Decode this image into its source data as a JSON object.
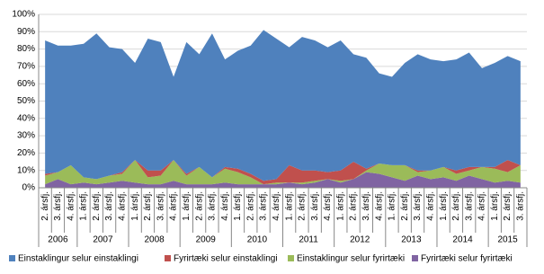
{
  "chart_data": {
    "type": "stacked-area",
    "categories": [
      {
        "year": "2006",
        "quarter": "2. ársfj."
      },
      {
        "year": "2006",
        "quarter": "3. ársfj."
      },
      {
        "year": "2006",
        "quarter": "4. ársfj."
      },
      {
        "year": "2007",
        "quarter": "1. ársfj."
      },
      {
        "year": "2007",
        "quarter": "2. ársfj."
      },
      {
        "year": "2007",
        "quarter": "3. ársfj."
      },
      {
        "year": "2007",
        "quarter": "4. ársfj."
      },
      {
        "year": "2008",
        "quarter": "1. ársfj."
      },
      {
        "year": "2008",
        "quarter": "2. ársfj."
      },
      {
        "year": "2008",
        "quarter": "3. ársfj."
      },
      {
        "year": "2008",
        "quarter": "4. ársfj."
      },
      {
        "year": "2009",
        "quarter": "1. ársfj."
      },
      {
        "year": "2009",
        "quarter": "2. ársfj."
      },
      {
        "year": "2009",
        "quarter": "3. ársfj."
      },
      {
        "year": "2009",
        "quarter": "4. ársfj."
      },
      {
        "year": "2010",
        "quarter": "1. ársfj."
      },
      {
        "year": "2010",
        "quarter": "2. ársfj."
      },
      {
        "year": "2010",
        "quarter": "3. ársfj."
      },
      {
        "year": "2010",
        "quarter": "4. ársfj."
      },
      {
        "year": "2011",
        "quarter": "1. ársfj."
      },
      {
        "year": "2011",
        "quarter": "2. ársfj."
      },
      {
        "year": "2011",
        "quarter": "3. ársfj."
      },
      {
        "year": "2011",
        "quarter": "4. ársfj."
      },
      {
        "year": "2012",
        "quarter": "1. ársfj."
      },
      {
        "year": "2012",
        "quarter": "2. ársfj."
      },
      {
        "year": "2012",
        "quarter": "3. ársfj."
      },
      {
        "year": "2012",
        "quarter": "4. ársfj."
      },
      {
        "year": "2013",
        "quarter": "1. ársfj."
      },
      {
        "year": "2013",
        "quarter": "2. ársfj."
      },
      {
        "year": "2013",
        "quarter": "3. ársfj."
      },
      {
        "year": "2013",
        "quarter": "4. ársfj."
      },
      {
        "year": "2014",
        "quarter": "1. ársfj."
      },
      {
        "year": "2014",
        "quarter": "2. ársfj."
      },
      {
        "year": "2014",
        "quarter": "3. ársfj."
      },
      {
        "year": "2014",
        "quarter": "4. ársfj."
      },
      {
        "year": "2015",
        "quarter": "1. ársfj."
      },
      {
        "year": "2015",
        "quarter": "2. ársfj."
      },
      {
        "year": "2015",
        "quarter": "3. ársfj."
      }
    ],
    "series": [
      {
        "name": "Fyrirtæki selur fyrirtæki",
        "color": "#8064a2",
        "values": [
          2,
          5,
          2,
          3,
          2,
          3,
          4,
          3,
          2,
          2,
          4,
          2,
          2,
          2,
          3,
          2,
          2,
          2,
          2,
          3,
          2,
          3,
          5,
          3,
          5,
          9,
          8,
          6,
          4,
          7,
          5,
          6,
          4,
          7,
          5,
          3,
          4,
          3
        ]
      },
      {
        "name": "Einstaklingur selur fyrirtæki",
        "color": "#9bbb59",
        "values": [
          5,
          4,
          11,
          3,
          3,
          4,
          4,
          13,
          4,
          5,
          12,
          5,
          10,
          4,
          8,
          7,
          4,
          0,
          1,
          0,
          1,
          1,
          0,
          1,
          0,
          1,
          6,
          7,
          9,
          2,
          5,
          6,
          4,
          3,
          7,
          8,
          5,
          10
        ]
      },
      {
        "name": "Fyrirtæki selur einstaklingi",
        "color": "#c0504d",
        "values": [
          1,
          0,
          0,
          0,
          0,
          0,
          1,
          0,
          4,
          3,
          0,
          1,
          0,
          0,
          1,
          2,
          2,
          2,
          2,
          10,
          7,
          6,
          4,
          6,
          10,
          1,
          0,
          0,
          0,
          1,
          0,
          0,
          2,
          2,
          0,
          1,
          7,
          0
        ]
      },
      {
        "name": "Einstaklingur selur einstaklingi",
        "color": "#4f81bd",
        "values": [
          77,
          73,
          69,
          77,
          84,
          74,
          71,
          56,
          76,
          74,
          48,
          76,
          65,
          83,
          62,
          68,
          74,
          87,
          81,
          68,
          77,
          75,
          72,
          75,
          62,
          64,
          52,
          51,
          59,
          67,
          64,
          61,
          64,
          66,
          57,
          60,
          60,
          60
        ]
      }
    ],
    "legend_order": [
      3,
      2,
      1,
      0
    ],
    "ylim": [
      0,
      100
    ],
    "yticks": [
      {
        "value": 0,
        "label": "0%"
      },
      {
        "value": 10,
        "label": "10%"
      },
      {
        "value": 20,
        "label": "20%"
      },
      {
        "value": 30,
        "label": "30%"
      },
      {
        "value": 40,
        "label": "40%"
      },
      {
        "value": 50,
        "label": "50%"
      },
      {
        "value": 60,
        "label": "60%"
      },
      {
        "value": 70,
        "label": "70%"
      },
      {
        "value": 80,
        "label": "80%"
      },
      {
        "value": 90,
        "label": "90%"
      },
      {
        "value": 100,
        "label": "100%"
      }
    ],
    "grid": true
  }
}
